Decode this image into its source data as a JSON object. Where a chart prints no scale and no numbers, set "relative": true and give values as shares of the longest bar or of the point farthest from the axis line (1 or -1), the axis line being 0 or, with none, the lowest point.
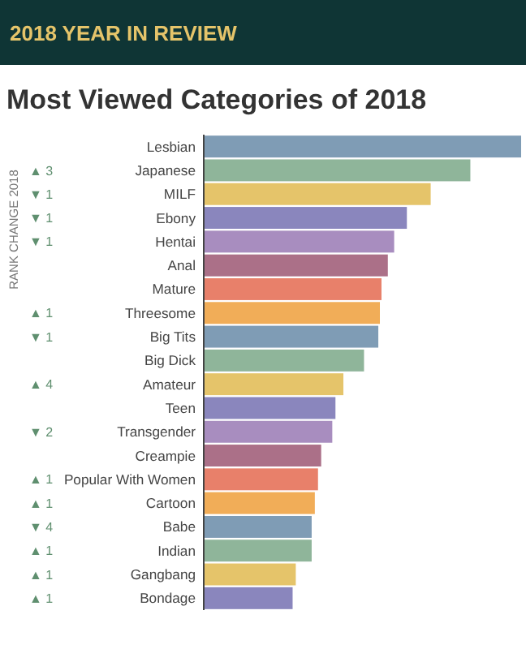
{
  "chart_data": {
    "type": "bar",
    "orientation": "horizontal",
    "relative": true,
    "title": "Most Viewed Categories of 2018",
    "ylabel": "RANK CHANGE 2018",
    "categories": [
      "Lesbian",
      "Japanese",
      "MILF",
      "Ebony",
      "Hentai",
      "Anal",
      "Mature",
      "Threesome",
      "Big Tits",
      "Big Dick",
      "Amateur",
      "Teen",
      "Transgender",
      "Creampie",
      "Popular With Women",
      "Cartoon",
      "Babe",
      "Indian",
      "Gangbang",
      "Bondage"
    ],
    "values": [
      1,
      0.84,
      0.715,
      0.64,
      0.6,
      0.58,
      0.56,
      0.555,
      0.55,
      0.505,
      0.44,
      0.415,
      0.405,
      0.37,
      0.36,
      0.35,
      0.34,
      0.34,
      0.29,
      0.28
    ],
    "colors": [
      "#7f9cb5",
      "#8fb59a",
      "#e5c46a",
      "#8a86bd",
      "#a88dbf",
      "#ab7088",
      "#e8806a",
      "#f1ad58",
      "#7f9cb5",
      "#8fb59a",
      "#e5c46a",
      "#8a86bd",
      "#a88dbf",
      "#ab7088",
      "#e8806a",
      "#f1ad58",
      "#7f9cb5",
      "#8fb59a",
      "#e5c46a",
      "#8a86bd"
    ],
    "annotations": [
      "2018 YEAR IN REVIEW",
      "▲ 3",
      "▼ 1",
      "▼ 1",
      "▼ 1",
      "▲ 1",
      "▼ 1",
      "▲ 4",
      "▼ 2",
      "▲ 1",
      "▲ 1",
      "▼ 4",
      "▲ 1",
      "▲ 1",
      "▲ 1"
    ]
  }
}
